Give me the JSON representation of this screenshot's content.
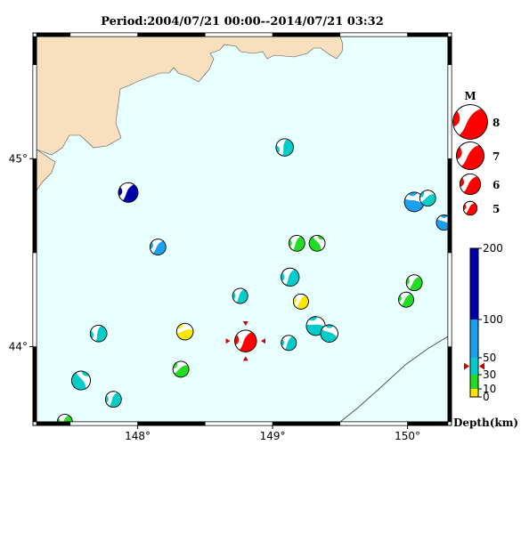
{
  "title": "Period:2004/07/21 00:00--2014/07/21 03:32",
  "map": {
    "lon_range": [
      147.25,
      150.3
    ],
    "lat_range": [
      43.6,
      45.65
    ],
    "lon_ticks": [
      {
        "v": 148,
        "label": "148°"
      },
      {
        "v": 149,
        "label": "149°"
      },
      {
        "v": 150,
        "label": "150°"
      }
    ],
    "lat_ticks": [
      {
        "v": 45,
        "label": "45°"
      },
      {
        "v": 44,
        "label": "44°"
      }
    ],
    "colors": {
      "sea": "#e8ffff",
      "land": "#f8dfbd",
      "frame": "#000000"
    }
  },
  "magnitude_legend": {
    "title": "M",
    "items": [
      {
        "m": 8,
        "label": "8"
      },
      {
        "m": 7,
        "label": "7"
      },
      {
        "m": 6,
        "label": "6"
      },
      {
        "m": 5,
        "label": "5"
      }
    ],
    "color": "#ff0000"
  },
  "depth_scale": {
    "label": "Depth(km)",
    "ticks": [
      {
        "v": 0,
        "label": "0"
      },
      {
        "v": 10,
        "label": "10"
      },
      {
        "v": 30,
        "label": "30"
      },
      {
        "v": 50,
        "label": "50"
      },
      {
        "v": 100,
        "label": "100"
      },
      {
        "v": 200,
        "label": "200"
      }
    ],
    "bands": [
      {
        "from": 0,
        "to": 10,
        "color": "#ffe600"
      },
      {
        "from": 10,
        "to": 30,
        "color": "#22dd22"
      },
      {
        "from": 30,
        "to": 50,
        "color": "#00cccc"
      },
      {
        "from": 50,
        "to": 100,
        "color": "#1aa0ee"
      },
      {
        "from": 100,
        "to": 200,
        "color": "#0000aa"
      }
    ],
    "marker_depth": 40,
    "marker_color": "#cc0000"
  },
  "events": [
    {
      "lon": 149.09,
      "lat": 45.06,
      "mag": 5.4,
      "depth": 35,
      "color": "#00cccc",
      "rot": 15
    },
    {
      "lon": 147.93,
      "lat": 44.82,
      "mag": 5.7,
      "depth": 120,
      "color": "#0000aa",
      "rot": 35
    },
    {
      "lon": 150.05,
      "lat": 44.77,
      "mag": 5.7,
      "depth": 60,
      "color": "#1aa0ee",
      "rot": 110
    },
    {
      "lon": 150.15,
      "lat": 44.79,
      "mag": 5.2,
      "depth": 35,
      "color": "#00cccc",
      "rot": 60
    },
    {
      "lon": 150.27,
      "lat": 44.66,
      "mag": 5.1,
      "depth": 60,
      "color": "#1aa0ee",
      "rot": 120
    },
    {
      "lon": 148.15,
      "lat": 44.53,
      "mag": 5.2,
      "depth": 60,
      "color": "#1aa0ee",
      "rot": 40
    },
    {
      "lon": 149.18,
      "lat": 44.55,
      "mag": 5.2,
      "depth": 20,
      "color": "#22dd22",
      "rot": 30
    },
    {
      "lon": 149.33,
      "lat": 44.55,
      "mag": 5.2,
      "depth": 20,
      "color": "#22dd22",
      "rot": 150
    },
    {
      "lon": 149.13,
      "lat": 44.37,
      "mag": 5.5,
      "depth": 35,
      "color": "#00cccc",
      "rot": 30
    },
    {
      "lon": 150.05,
      "lat": 44.34,
      "mag": 5.2,
      "depth": 20,
      "color": "#22dd22",
      "rot": 40
    },
    {
      "lon": 149.99,
      "lat": 44.25,
      "mag": 5.1,
      "depth": 20,
      "color": "#22dd22",
      "rot": 40
    },
    {
      "lon": 148.76,
      "lat": 44.27,
      "mag": 5.1,
      "depth": 35,
      "color": "#00cccc",
      "rot": 30
    },
    {
      "lon": 149.21,
      "lat": 44.24,
      "mag": 5.1,
      "depth": 5,
      "color": "#ffe600",
      "rot": 40
    },
    {
      "lon": 149.32,
      "lat": 44.11,
      "mag": 5.6,
      "depth": 35,
      "color": "#00cccc",
      "rot": 100
    },
    {
      "lon": 149.42,
      "lat": 44.07,
      "mag": 5.4,
      "depth": 35,
      "color": "#00cccc",
      "rot": 120
    },
    {
      "lon": 147.71,
      "lat": 44.07,
      "mag": 5.3,
      "depth": 35,
      "color": "#00cccc",
      "rot": 20
    },
    {
      "lon": 148.35,
      "lat": 44.08,
      "mag": 5.3,
      "depth": 5,
      "color": "#ffe600",
      "rot": 80
    },
    {
      "lon": 149.12,
      "lat": 44.02,
      "mag": 5.1,
      "depth": 35,
      "color": "#00cccc",
      "rot": 30
    },
    {
      "lon": 148.8,
      "lat": 44.03,
      "mag": 6.0,
      "depth": 40,
      "color": "#ff0000",
      "rot": 35,
      "highlight": true
    },
    {
      "lon": 148.32,
      "lat": 43.88,
      "mag": 5.2,
      "depth": 20,
      "color": "#22dd22",
      "rot": 60
    },
    {
      "lon": 147.58,
      "lat": 43.82,
      "mag": 5.6,
      "depth": 35,
      "color": "#00cccc",
      "rot": 150
    },
    {
      "lon": 147.82,
      "lat": 43.72,
      "mag": 5.2,
      "depth": 35,
      "color": "#00cccc",
      "rot": 30
    },
    {
      "lon": 147.46,
      "lat": 43.6,
      "mag": 5.1,
      "depth": 20,
      "color": "#22dd22",
      "rot": 30
    }
  ]
}
